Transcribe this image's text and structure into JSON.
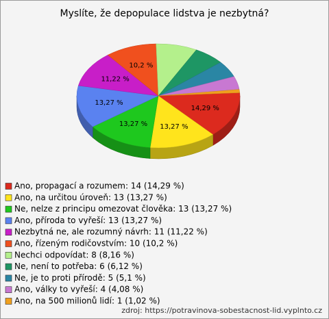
{
  "chart_data": {
    "type": "pie3d",
    "title": "Myslíte, že depopulace lidstva je nezbytná?",
    "categories": [
      "Ano, propagací a rozumem: 14 (14,29 %)",
      "Ano, na určitou úroveň: 13 (13,27 %)",
      "Ne, nelze z principu omezovat člověka: 13 (13,27 %)",
      "Ano, příroda to vyřeší: 13 (13,27 %)",
      "Nezbytná ne, ale rozumný návrh: 11 (11,22 %)",
      "Ano, řízeným rodičovstvím: 10 (10,2 %)",
      "Nechci odpovídat: 8 (8,16 %)",
      "Ne, není to potřeba: 6 (6,12 %)",
      "Ne, je to proti přírodě: 5 (5,1 %)",
      "Ano, války to vyřeší: 4 (4,08 %)",
      "Ano, na 500 milionů lidí: 1 (1,02 %)"
    ],
    "values": [
      14.29,
      13.27,
      13.27,
      13.27,
      11.22,
      10.2,
      8.16,
      6.12,
      5.1,
      4.08,
      1.02
    ],
    "value_labels": [
      "14,29 %",
      "13,27 %",
      "13,27 %",
      "13,27 %",
      "11,22 %",
      "10,2 %",
      null,
      null,
      null,
      null,
      null
    ],
    "colors": [
      "#dc2a1e",
      "#ffe41c",
      "#1ec81e",
      "#5a82f0",
      "#c81ec8",
      "#f0501e",
      "#b4f08c",
      "#1e9664",
      "#2a86a4",
      "#c878d2",
      "#f0a01e"
    ],
    "source": "zdroj: https://potravinova-sobestacnost-lid.vyplnto.cz"
  }
}
